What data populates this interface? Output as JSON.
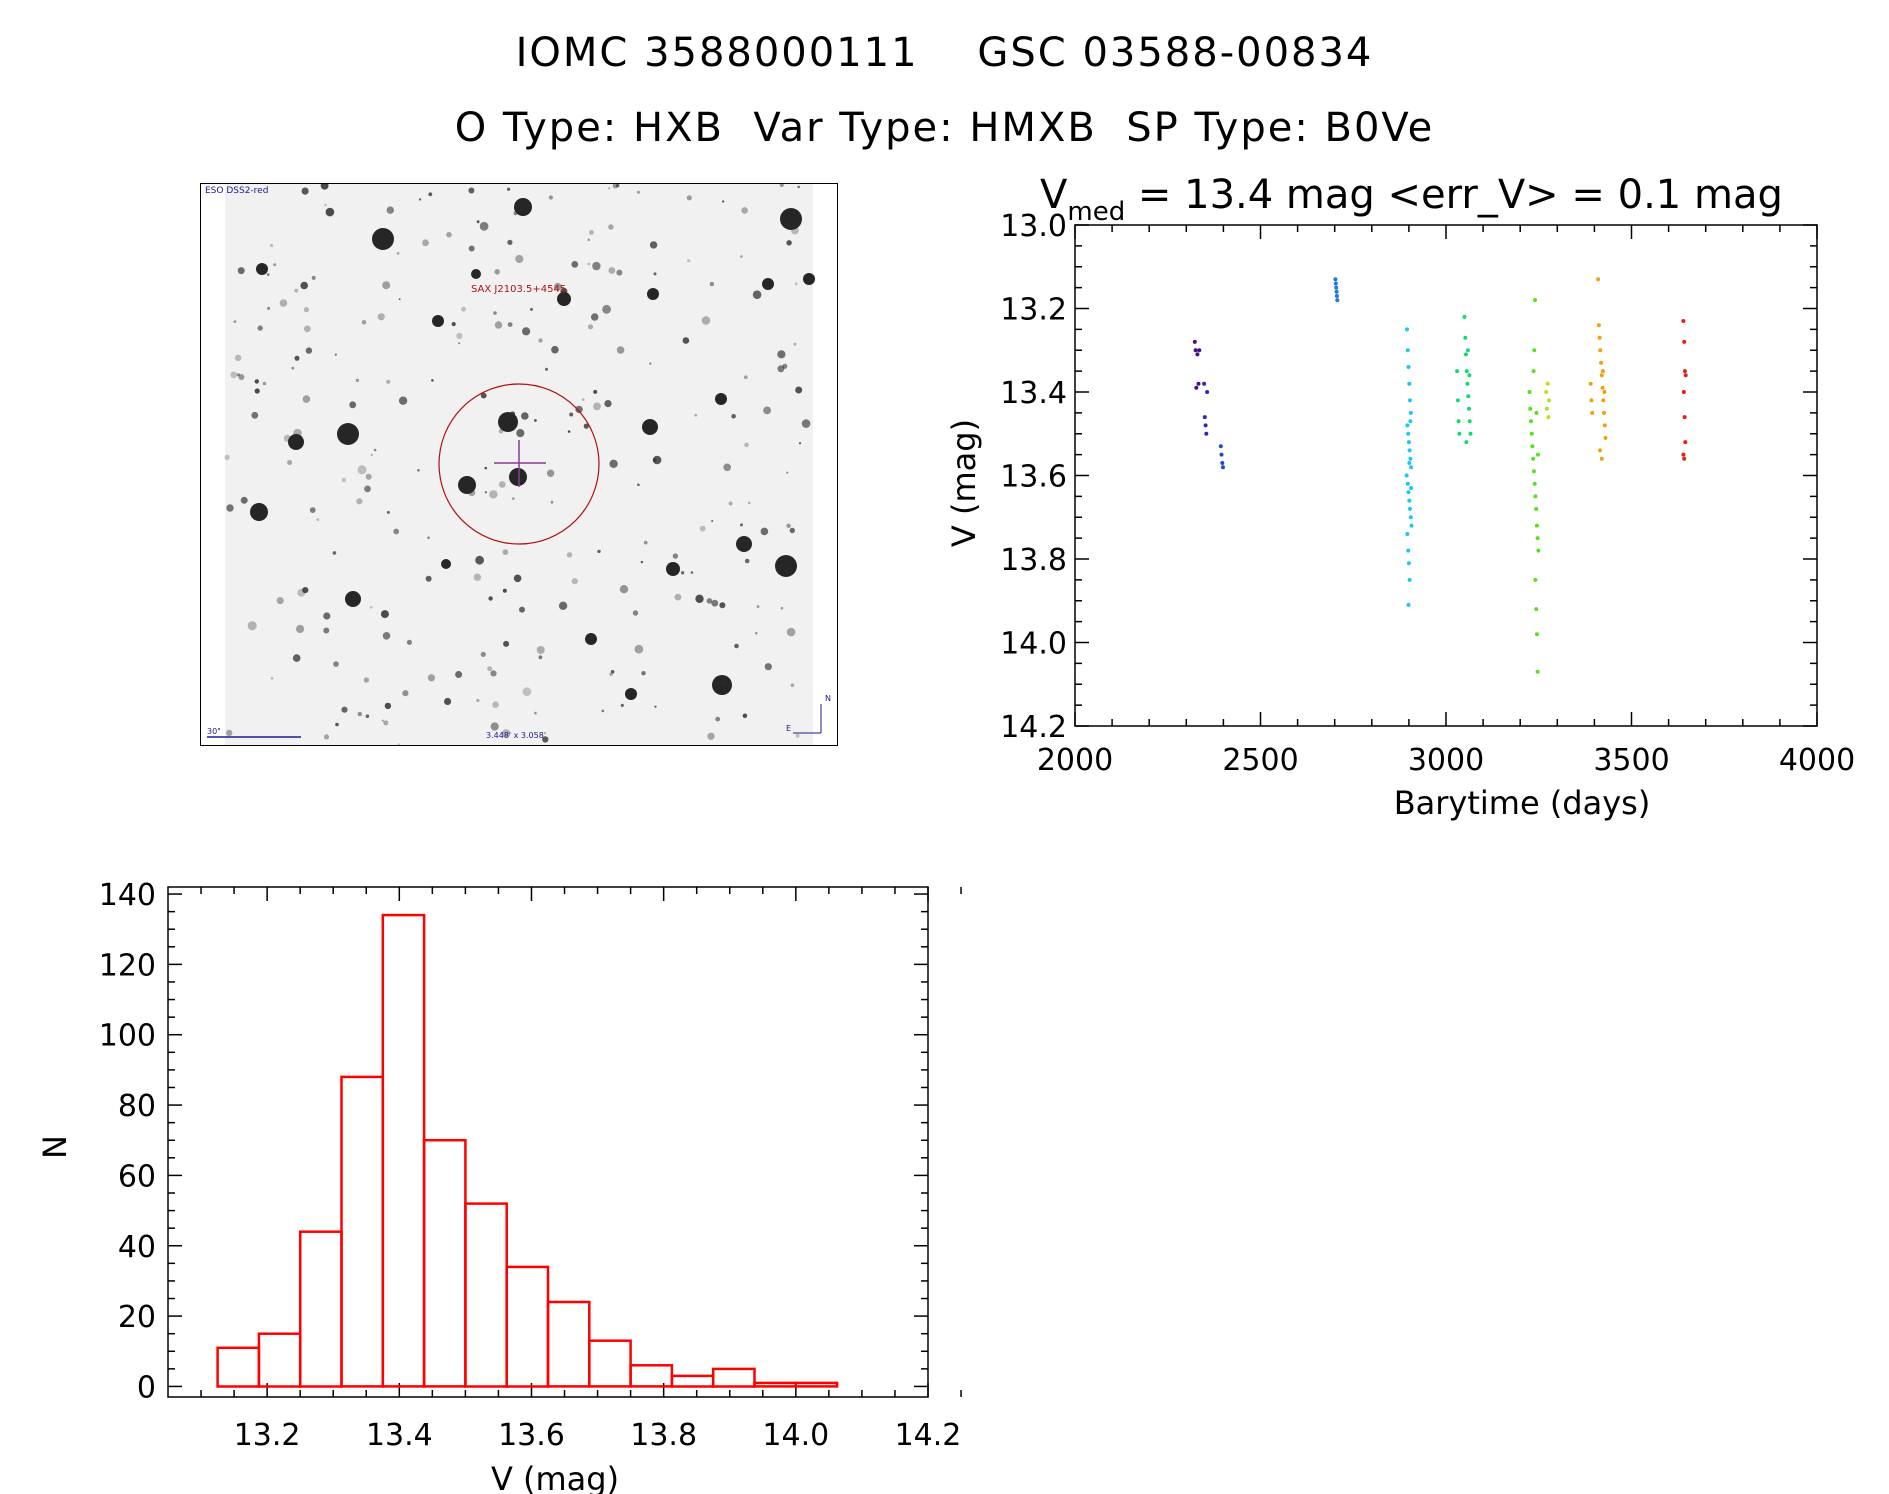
{
  "header": {
    "title_line1": "IOMC 3588000111    GSC 03588-00834",
    "title_line2": "O Type: HXB  Var Type: HMXB  SP Type: B0Ve"
  },
  "finding_chart": {
    "top_left_label": "ESO DSS2-red",
    "source_label": "SAX J2103.5+4545",
    "scale_label": "30\"",
    "field_label": "3.448' x 3.058'",
    "north_label": "N",
    "east_label": "E",
    "circle_color": "#b01010",
    "cross_color": "#8a3a9a"
  },
  "chart_data": [
    {
      "type": "scatter",
      "title_main": "V",
      "title_sub": "med",
      "title_rest": " = 13.4 mag <err_V> = 0.1 mag",
      "xlabel": "Barytime (days)",
      "ylabel": "V (mag)",
      "xlim": [
        2000,
        4000
      ],
      "ylim": [
        14.2,
        13.0
      ],
      "xticks": [
        2000,
        2500,
        3000,
        3500,
        4000
      ],
      "yticks": [
        13.0,
        13.2,
        13.4,
        13.6,
        13.8,
        14.0,
        14.2
      ],
      "series": [
        {
          "name": "g1",
          "color": "#4b0f8a",
          "points": [
            [
              2323,
              13.28
            ],
            [
              2325,
              13.3
            ],
            [
              2327,
              13.39
            ],
            [
              2330,
              13.31
            ],
            [
              2333,
              13.38
            ],
            [
              2335,
              13.3
            ]
          ]
        },
        {
          "name": "g2",
          "color": "#2a2ab8",
          "points": [
            [
              2348,
              13.38
            ],
            [
              2350,
              13.46
            ],
            [
              2352,
              13.48
            ],
            [
              2354,
              13.5
            ],
            [
              2356,
              13.4
            ]
          ]
        },
        {
          "name": "g3",
          "color": "#1a4ad0",
          "points": [
            [
              2393,
              13.53
            ],
            [
              2395,
              13.55
            ],
            [
              2397,
              13.57
            ],
            [
              2399,
              13.58
            ]
          ]
        },
        {
          "name": "g4",
          "color": "#1a7ae0",
          "points": [
            [
              2702,
              13.13
            ],
            [
              2703,
              13.14
            ],
            [
              2704,
              13.15
            ],
            [
              2705,
              13.16
            ],
            [
              2706,
              13.17
            ],
            [
              2707,
              13.18
            ]
          ]
        },
        {
          "name": "g5",
          "color": "#1ac8f0",
          "points": [
            [
              2895,
              13.25
            ],
            [
              2897,
              13.3
            ],
            [
              2899,
              13.34
            ],
            [
              2901,
              13.38
            ],
            [
              2903,
              13.42
            ],
            [
              2905,
              13.45
            ],
            [
              2896,
              13.48
            ],
            [
              2898,
              13.5
            ],
            [
              2900,
              13.52
            ],
            [
              2902,
              13.54
            ],
            [
              2904,
              13.56
            ],
            [
              2906,
              13.58
            ],
            [
              2894,
              13.6
            ],
            [
              2897,
              13.62
            ],
            [
              2899,
              13.64
            ],
            [
              2901,
              13.66
            ],
            [
              2903,
              13.68
            ],
            [
              2905,
              13.7
            ],
            [
              2907,
              13.72
            ],
            [
              2896,
              13.74
            ],
            [
              2898,
              13.78
            ],
            [
              2900,
              13.81
            ],
            [
              2902,
              13.85
            ],
            [
              2899,
              13.91
            ],
            [
              2904,
              13.47
            ],
            [
              2901,
              13.57
            ],
            [
              2906,
              13.63
            ]
          ]
        },
        {
          "name": "g6",
          "color": "#1ad870",
          "points": [
            [
              3030,
              13.35
            ],
            [
              3032,
              13.42
            ],
            [
              3034,
              13.47
            ],
            [
              3036,
              13.5
            ],
            [
              3050,
              13.22
            ],
            [
              3052,
              13.27
            ],
            [
              3054,
              13.31
            ],
            [
              3056,
              13.35
            ],
            [
              3058,
              13.38
            ],
            [
              3060,
              13.41
            ],
            [
              3062,
              13.44
            ],
            [
              3064,
              13.47
            ],
            [
              3066,
              13.5
            ],
            [
              3055,
              13.52
            ],
            [
              3059,
              13.3
            ],
            [
              3063,
              13.36
            ]
          ]
        },
        {
          "name": "g7",
          "color": "#5ae020",
          "points": [
            [
              3225,
              13.4
            ],
            [
              3227,
              13.44
            ],
            [
              3229,
              13.47
            ],
            [
              3231,
              13.5
            ],
            [
              3233,
              13.53
            ],
            [
              3235,
              13.56
            ],
            [
              3237,
              13.59
            ],
            [
              3239,
              13.62
            ],
            [
              3241,
              13.65
            ],
            [
              3243,
              13.68
            ],
            [
              3245,
              13.72
            ],
            [
              3247,
              13.75
            ],
            [
              3249,
              13.78
            ],
            [
              3241,
              13.85
            ],
            [
              3243,
              13.92
            ],
            [
              3245,
              13.98
            ],
            [
              3247,
              14.07
            ],
            [
              3240,
              13.18
            ],
            [
              3238,
              13.3
            ],
            [
              3236,
              13.35
            ],
            [
              3244,
              13.45
            ],
            [
              3248,
              13.55
            ]
          ]
        },
        {
          "name": "g8",
          "color": "#b8e020",
          "points": [
            [
              3270,
              13.4
            ],
            [
              3272,
              13.44
            ],
            [
              3274,
              13.38
            ],
            [
              3276,
              13.46
            ],
            [
              3278,
              13.42
            ]
          ]
        },
        {
          "name": "g9",
          "color": "#f0a010",
          "points": [
            [
              3410,
              13.13
            ],
            [
              3412,
              13.24
            ],
            [
              3414,
              13.27
            ],
            [
              3416,
              13.3
            ],
            [
              3418,
              13.33
            ],
            [
              3420,
              13.36
            ],
            [
              3422,
              13.39
            ],
            [
              3424,
              13.42
            ],
            [
              3426,
              13.45
            ],
            [
              3428,
              13.48
            ],
            [
              3430,
              13.51
            ],
            [
              3415,
              13.54
            ],
            [
              3420,
              13.56
            ],
            [
              3390,
              13.38
            ],
            [
              3392,
              13.42
            ],
            [
              3394,
              13.45
            ],
            [
              3423,
              13.35
            ],
            [
              3427,
              13.4
            ]
          ]
        },
        {
          "name": "g10",
          "color": "#e82010",
          "points": [
            [
              3640,
              13.23
            ],
            [
              3642,
              13.28
            ],
            [
              3644,
              13.35
            ],
            [
              3646,
              13.36
            ],
            [
              3641,
              13.4
            ],
            [
              3643,
              13.46
            ],
            [
              3645,
              13.52
            ],
            [
              3640,
              13.55
            ],
            [
              3642,
              13.56
            ]
          ]
        }
      ]
    },
    {
      "type": "bar",
      "xlabel": "V (mag)",
      "ylabel": "N",
      "xlim": [
        13.05,
        14.2
      ],
      "ylim": [
        -3,
        142
      ],
      "xticks": [
        13.2,
        13.4,
        13.6,
        13.8,
        14.0,
        14.2
      ],
      "yticks": [
        0,
        20,
        40,
        60,
        80,
        100,
        120,
        140
      ],
      "bin_width": 0.0625,
      "bin_starts": [
        13.125,
        13.1875,
        13.25,
        13.3125,
        13.375,
        13.4375,
        13.5,
        13.5625,
        13.625,
        13.6875,
        13.75,
        13.8125,
        13.875,
        13.9375,
        14.0
      ],
      "values": [
        11,
        15,
        44,
        88,
        134,
        70,
        52,
        34,
        24,
        13,
        6,
        3,
        5,
        1,
        1
      ],
      "color": "#ff0000"
    }
  ]
}
